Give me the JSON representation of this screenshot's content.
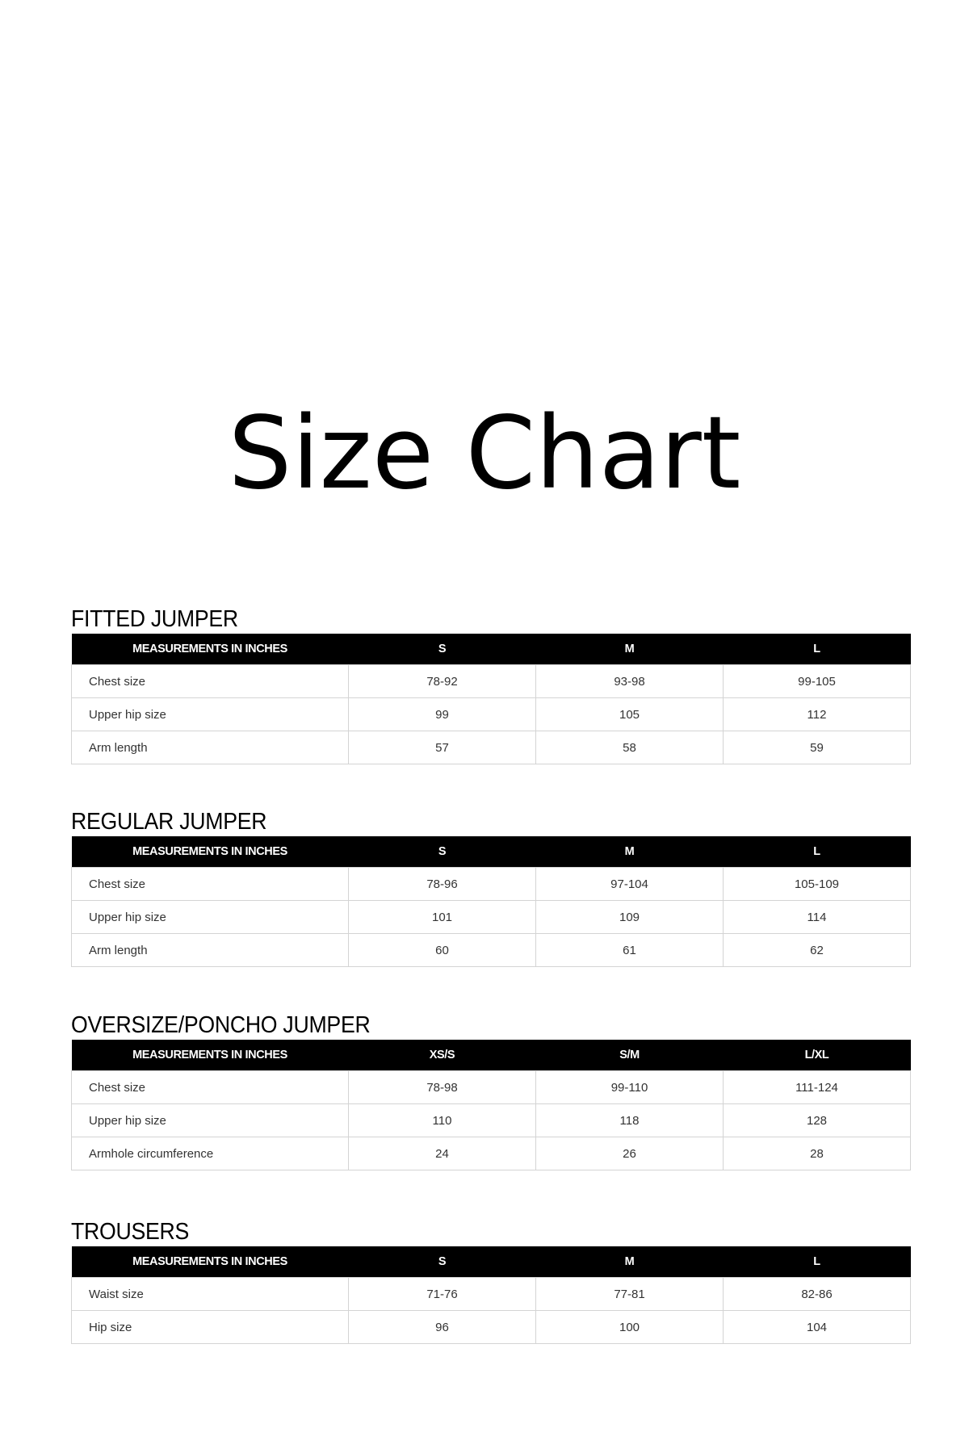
{
  "title": "Size Chart",
  "sections": [
    {
      "heading": "FITTED JUMPER",
      "columns": [
        "MEASUREMENTS IN INCHES",
        "S",
        "M",
        "L"
      ],
      "rows": [
        [
          "Chest size",
          "78-92",
          "93-98",
          "99-105"
        ],
        [
          "Upper hip size",
          "99",
          "105",
          "112"
        ],
        [
          "Arm length",
          "57",
          "58",
          "59"
        ]
      ]
    },
    {
      "heading": "REGULAR JUMPER",
      "columns": [
        "MEASUREMENTS IN INCHES",
        "S",
        "M",
        "L"
      ],
      "rows": [
        [
          "Chest size",
          "78-96",
          "97-104",
          "105-109"
        ],
        [
          "Upper hip size",
          "101",
          "109",
          "114"
        ],
        [
          "Arm length",
          "60",
          "61",
          "62"
        ]
      ]
    },
    {
      "heading": "OVERSIZE/PONCHO JUMPER",
      "columns": [
        "MEASUREMENTS IN INCHES",
        "XS/S",
        "S/M",
        "L/XL"
      ],
      "rows": [
        [
          "Chest size",
          "78-98",
          "99-110",
          "111-124"
        ],
        [
          "Upper hip size",
          "110",
          "118",
          "128"
        ],
        [
          "Armhole circumference",
          "24",
          "26",
          "28"
        ]
      ]
    },
    {
      "heading": "TROUSERS",
      "columns": [
        "MEASUREMENTS IN INCHES",
        "S",
        "M",
        "L"
      ],
      "rows": [
        [
          "Waist size",
          "71-76",
          "77-81",
          "82-86"
        ],
        [
          "Hip size",
          "96",
          "100",
          "104"
        ]
      ]
    }
  ]
}
